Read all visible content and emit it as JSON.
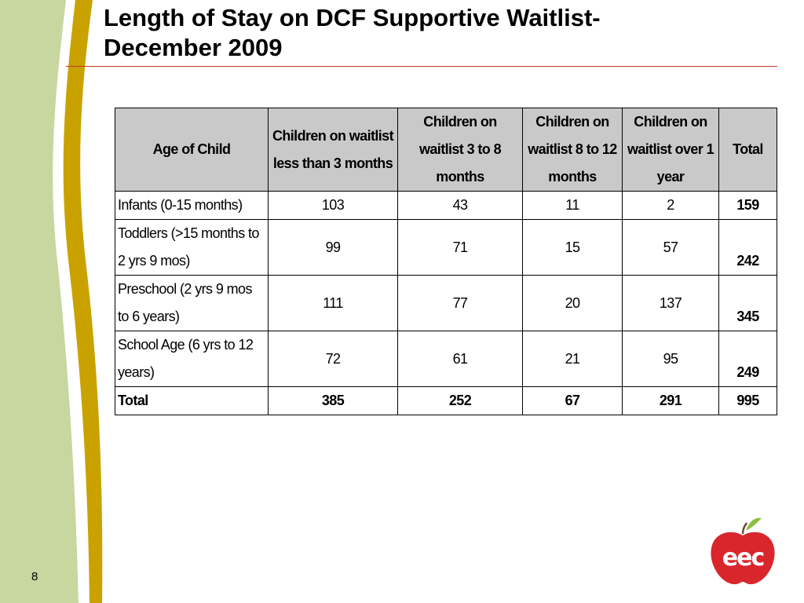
{
  "slide": {
    "title_line1": "Length of Stay on DCF Supportive Waitlist-",
    "title_line2": "December 2009",
    "page_number": "8",
    "logo_text": "eec",
    "colors": {
      "sidebar_light": "#c8d6a0",
      "sidebar_gold": "#c9a200",
      "rule": "#c0392b",
      "header_fill": "#c9c9c9",
      "logo_red": "#d9262c",
      "logo_leaf": "#8bbf3f"
    }
  },
  "table": {
    "headers": [
      "Age of Child",
      "Children on waitlist less than 3 months",
      "Children on waitlist 3 to 8 months",
      "Children on waitlist 8 to 12 months",
      "Children on waitlist over 1 year",
      "Total"
    ],
    "rows": [
      {
        "label": "Infants (0-15 months)",
        "values": [
          "103",
          "43",
          "11",
          "2"
        ],
        "total": "159"
      },
      {
        "label": "Toddlers (>15 months to 2 yrs 9 mos)",
        "values": [
          "99",
          "71",
          "15",
          "57"
        ],
        "total": "242"
      },
      {
        "label": "Preschool (2 yrs 9 mos to 6 years)",
        "values": [
          "111",
          "77",
          "20",
          "137"
        ],
        "total": "345"
      },
      {
        "label": "School Age (6 yrs to 12 years)",
        "values": [
          "72",
          "61",
          "21",
          "95"
        ],
        "total": "249"
      }
    ],
    "total_row": {
      "label": "Total",
      "values": [
        "385",
        "252",
        "67",
        "291"
      ],
      "total": "995"
    }
  }
}
